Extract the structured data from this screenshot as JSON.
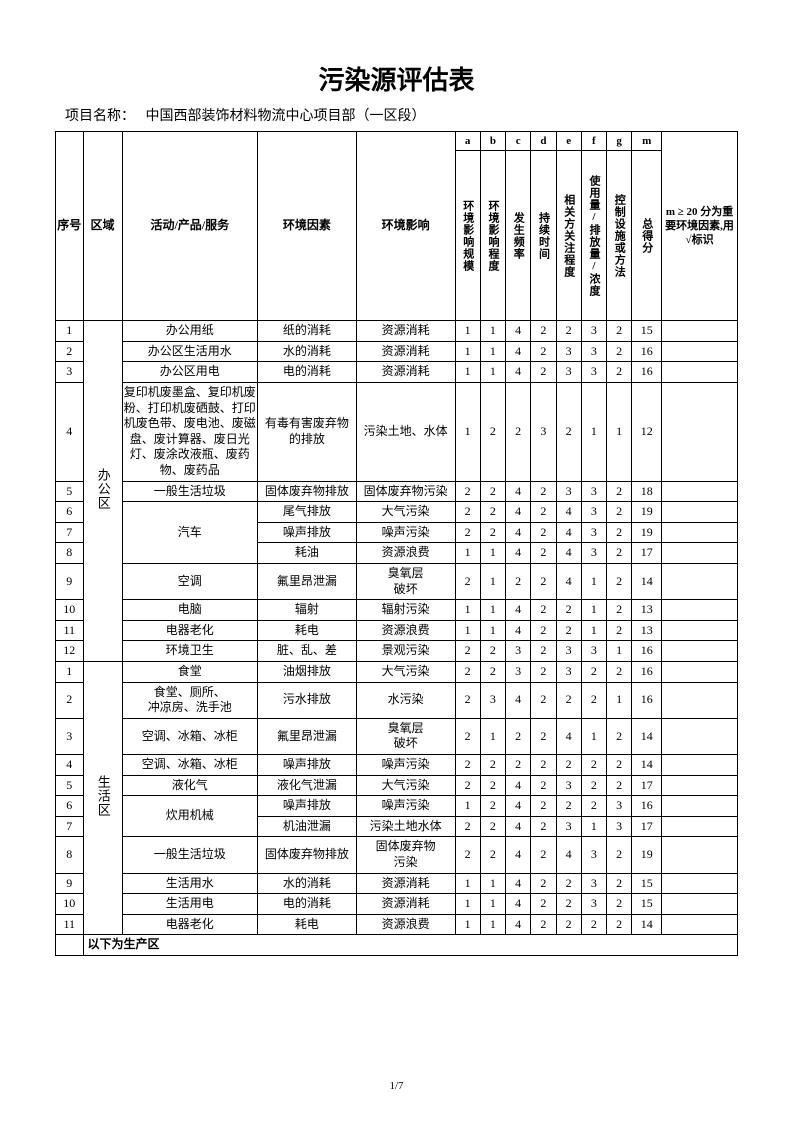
{
  "title": "污染源评估表",
  "project_label": "项目名称：",
  "project_name": "中国西部装饰材料物流中心项目部（一区段）",
  "page_number": "1/7",
  "header": {
    "seq": "序号",
    "area": "区域",
    "activity": "活动/产品/服务",
    "factor": "环境因素",
    "impact": "环境影响",
    "letters": [
      "a",
      "b",
      "c",
      "d",
      "e",
      "f",
      "g",
      "m"
    ],
    "cols": [
      "环境影响规模",
      "环境影响程度",
      "发生频率",
      "持续时间",
      "相关方关注程度",
      "使用量/排放量/浓度",
      "控制设施或方法",
      "总得分"
    ],
    "note": "m ≥ 20 分为重要环境因素,用√标识"
  },
  "areas": [
    {
      "name": "办公区",
      "rows": [
        {
          "n": "1",
          "act": "办公用纸",
          "fac": "纸的消耗",
          "imp": "资源消耗",
          "s": [
            "1",
            "1",
            "4",
            "2",
            "2",
            "3",
            "2",
            "15"
          ],
          "nt": ""
        },
        {
          "n": "2",
          "act": "办公区生活用水",
          "fac": "水的消耗",
          "imp": "资源消耗",
          "s": [
            "1",
            "1",
            "4",
            "2",
            "3",
            "3",
            "2",
            "16"
          ],
          "nt": ""
        },
        {
          "n": "3",
          "act": "办公区用电",
          "fac": "电的消耗",
          "imp": "资源消耗",
          "s": [
            "1",
            "1",
            "4",
            "2",
            "3",
            "3",
            "2",
            "16"
          ],
          "nt": ""
        },
        {
          "n": "4",
          "act": "复印机废墨盒、复印机废粉、打印机废硒鼓、打印机废色带、废电池、废磁盘、废计算器、废日光灯、废涂改液瓶、废药物、废药品",
          "fac": "有毒有害废弃物的排放",
          "imp": "污染土地、水体",
          "s": [
            "1",
            "2",
            "2",
            "3",
            "2",
            "1",
            "1",
            "12"
          ],
          "nt": ""
        },
        {
          "n": "5",
          "act": "一般生活垃圾",
          "fac": "固体废弃物排放",
          "imp": "固体废弃物污染",
          "s": [
            "2",
            "2",
            "4",
            "2",
            "3",
            "3",
            "2",
            "18"
          ],
          "nt": ""
        },
        {
          "n": "6",
          "act": "",
          "fac": "尾气排放",
          "imp": "大气污染",
          "s": [
            "2",
            "2",
            "4",
            "2",
            "4",
            "3",
            "2",
            "19"
          ],
          "nt": "",
          "carGroupStart": true,
          "carGroupSpan": 3,
          "carLabel": "汽车"
        },
        {
          "n": "7",
          "act": "",
          "fac": "噪声排放",
          "imp": "噪声污染",
          "s": [
            "2",
            "2",
            "4",
            "2",
            "4",
            "3",
            "2",
            "19"
          ],
          "nt": "",
          "inCarGroup": true
        },
        {
          "n": "8",
          "act": "",
          "fac": "耗油",
          "imp": "资源浪费",
          "s": [
            "1",
            "1",
            "4",
            "2",
            "4",
            "3",
            "2",
            "17"
          ],
          "nt": "",
          "inCarGroup": true
        },
        {
          "n": "9",
          "act": "空调",
          "fac": "氟里昂泄漏",
          "imp": "臭氧层\n破坏",
          "s": [
            "2",
            "1",
            "2",
            "2",
            "4",
            "1",
            "2",
            "14"
          ],
          "nt": ""
        },
        {
          "n": "10",
          "act": "电脑",
          "fac": "辐射",
          "imp": "辐射污染",
          "s": [
            "1",
            "1",
            "4",
            "2",
            "2",
            "1",
            "2",
            "13"
          ],
          "nt": ""
        },
        {
          "n": "11",
          "act": "电器老化",
          "fac": "耗电",
          "imp": "资源浪费",
          "s": [
            "1",
            "1",
            "4",
            "2",
            "2",
            "1",
            "2",
            "13"
          ],
          "nt": ""
        },
        {
          "n": "12",
          "act": "环境卫生",
          "fac": "脏、乱、差",
          "imp": "景观污染",
          "s": [
            "2",
            "2",
            "3",
            "2",
            "3",
            "3",
            "1",
            "16"
          ],
          "nt": ""
        }
      ]
    },
    {
      "name": "生活区",
      "rows": [
        {
          "n": "1",
          "act": "食堂",
          "fac": "油烟排放",
          "imp": "大气污染",
          "s": [
            "2",
            "2",
            "3",
            "2",
            "3",
            "2",
            "2",
            "16"
          ],
          "nt": ""
        },
        {
          "n": "2",
          "act": "食堂、厕所、\n冲凉房、洗手池",
          "fac": "污水排放",
          "imp": "水污染",
          "s": [
            "2",
            "3",
            "4",
            "2",
            "2",
            "2",
            "1",
            "16"
          ],
          "nt": ""
        },
        {
          "n": "3",
          "act": "空调、冰箱、冰柜",
          "fac": "氟里昂泄漏",
          "imp": "臭氧层\n破坏",
          "s": [
            "2",
            "1",
            "2",
            "2",
            "4",
            "1",
            "2",
            "14"
          ],
          "nt": ""
        },
        {
          "n": "4",
          "act": "空调、冰箱、冰柜",
          "fac": "噪声排放",
          "imp": "噪声污染",
          "s": [
            "2",
            "2",
            "2",
            "2",
            "2",
            "2",
            "2",
            "14"
          ],
          "nt": ""
        },
        {
          "n": "5",
          "act": "液化气",
          "fac": "液化气泄漏",
          "imp": "大气污染",
          "s": [
            "2",
            "2",
            "4",
            "2",
            "3",
            "2",
            "2",
            "17"
          ],
          "nt": ""
        },
        {
          "n": "6",
          "act": "",
          "fac": "噪声排放",
          "imp": "噪声污染",
          "s": [
            "1",
            "2",
            "4",
            "2",
            "2",
            "2",
            "3",
            "16"
          ],
          "nt": "",
          "cookGroupStart": true,
          "cookGroupSpan": 2,
          "cookLabel": "炊用机械"
        },
        {
          "n": "7",
          "act": "",
          "fac": "机油泄漏",
          "imp": "污染土地水体",
          "s": [
            "2",
            "2",
            "4",
            "2",
            "3",
            "1",
            "3",
            "17"
          ],
          "nt": "",
          "inCookGroup": true
        },
        {
          "n": "8",
          "act": "一般生活垃圾",
          "fac": "固体废弃物排放",
          "imp": "固体废弃物\n污染",
          "s": [
            "2",
            "2",
            "4",
            "2",
            "4",
            "3",
            "2",
            "19"
          ],
          "nt": ""
        },
        {
          "n": "9",
          "act": "生活用水",
          "fac": "水的消耗",
          "imp": "资源消耗",
          "s": [
            "1",
            "1",
            "4",
            "2",
            "2",
            "3",
            "2",
            "15"
          ],
          "nt": ""
        },
        {
          "n": "10",
          "act": "生活用电",
          "fac": "电的消耗",
          "imp": "资源消耗",
          "s": [
            "1",
            "1",
            "4",
            "2",
            "2",
            "3",
            "2",
            "15"
          ],
          "nt": ""
        },
        {
          "n": "11",
          "act": "电器老化",
          "fac": "耗电",
          "imp": "资源浪费",
          "s": [
            "1",
            "1",
            "4",
            "2",
            "2",
            "2",
            "2",
            "14"
          ],
          "nt": ""
        }
      ]
    }
  ],
  "section_row": "以下为生产区"
}
